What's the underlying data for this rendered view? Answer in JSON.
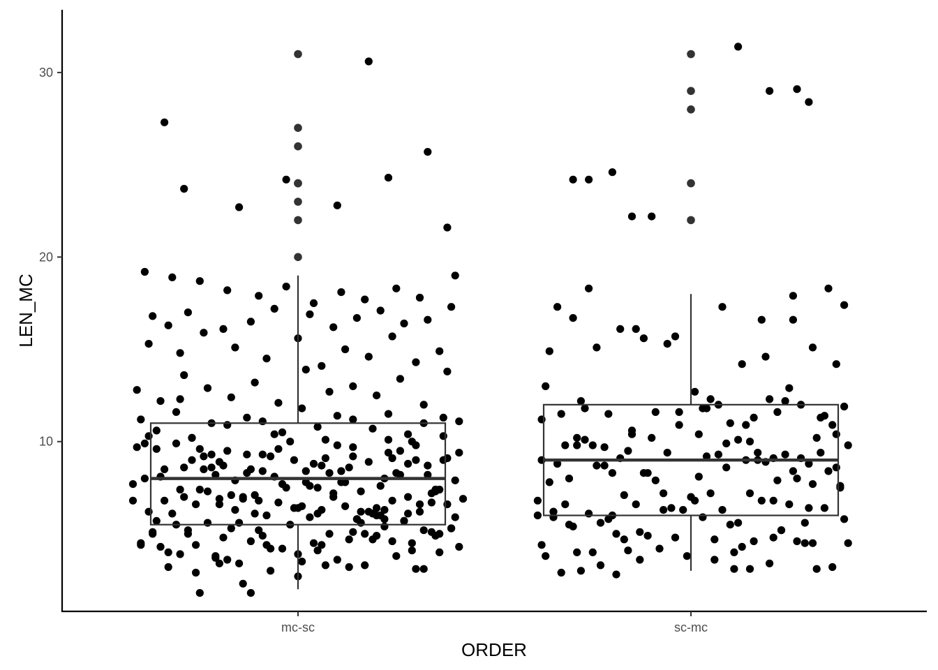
{
  "chart_data": {
    "type": "box",
    "xlabel": "ORDER",
    "ylabel": "LEN_MC",
    "categories": [
      "mc-sc",
      "sc-mc"
    ],
    "ylim": [
      0.8,
      33.4
    ],
    "yticks": [
      10,
      20,
      30
    ],
    "grid": false,
    "legend": "none",
    "boxes": [
      {
        "category": "mc-sc",
        "whisker_low": 2,
        "q1": 5.5,
        "median": 8,
        "q3": 11,
        "whisker_high": 19
      },
      {
        "category": "sc-mc",
        "whisker_low": 3,
        "q1": 6,
        "median": 9,
        "q3": 12,
        "whisker_high": 18
      }
    ],
    "outliers": [
      {
        "category": "mc-sc",
        "values": [
          20,
          22,
          23,
          24,
          24,
          26,
          27,
          31
        ]
      },
      {
        "category": "sc-mc",
        "values": [
          22,
          24,
          28,
          29,
          31
        ]
      }
    ],
    "points": [
      {
        "category": "mc-sc",
        "jitter": [
          -0.42,
          -0.39,
          -0.38,
          -0.37,
          -0.36,
          -0.35,
          -0.34,
          -0.33,
          -0.32,
          -0.31,
          -0.3,
          -0.29,
          -0.28,
          -0.27,
          -0.26,
          -0.25,
          -0.24,
          -0.23,
          -0.22,
          -0.21,
          -0.2,
          -0.19,
          -0.18,
          -0.17,
          -0.16,
          -0.15,
          -0.14,
          -0.13,
          -0.12,
          -0.11,
          -0.1,
          -0.09,
          -0.08,
          -0.07,
          -0.06,
          -0.05,
          -0.04,
          -0.03,
          -0.02,
          -0.01,
          0.0,
          0.01,
          0.02,
          0.03,
          0.04,
          0.05,
          0.06,
          0.07,
          0.08,
          0.09,
          0.1,
          0.11,
          0.12,
          0.13,
          0.14,
          0.15,
          0.16,
          0.17,
          0.18,
          0.19,
          0.2,
          0.21,
          0.22,
          0.23,
          0.24,
          0.25,
          0.26,
          0.27,
          0.28,
          0.29,
          0.3,
          0.31,
          0.32,
          0.33,
          0.34,
          0.35,
          0.36,
          0.37,
          0.38,
          0.39,
          0.4,
          0.41,
          0.42,
          -0.4,
          -0.36,
          -0.31,
          -0.27,
          -0.22,
          -0.18,
          -0.13,
          -0.09,
          -0.04,
          0.01,
          0.05,
          0.1,
          0.14,
          0.19,
          0.23,
          0.28,
          0.32,
          0.37,
          0.41,
          -0.41,
          -0.35,
          -0.29,
          -0.23,
          -0.17,
          -0.11,
          -0.05,
          0.02,
          0.08,
          0.14,
          0.2,
          0.26,
          0.32,
          0.38,
          -0.38,
          -0.3,
          -0.24,
          -0.16,
          -0.08,
          0.0,
          0.06,
          0.12,
          0.18,
          0.24,
          0.3,
          0.36,
          -0.37,
          -0.33,
          -0.28,
          -0.19,
          -0.12,
          -0.06,
          0.03,
          0.09,
          0.15,
          0.21,
          0.27,
          0.33,
          0.39,
          -0.39,
          -0.32,
          -0.25,
          -0.18,
          -0.1,
          -0.03,
          0.04,
          0.11,
          0.17,
          0.25,
          0.31,
          0.4,
          -0.36,
          -0.26,
          -0.2,
          -0.14,
          -0.07,
          0.07,
          0.13,
          0.22,
          0.29,
          0.34,
          -0.4,
          -0.34,
          -0.21,
          -0.15,
          -0.02,
          0.06,
          0.16,
          0.24,
          0.35,
          0.41,
          -0.41,
          -0.3,
          -0.24,
          -0.11,
          -0.05,
          0.03,
          0.1,
          0.2,
          0.28,
          0.37,
          -0.42,
          -0.27,
          -0.17,
          -0.09,
          0.01,
          0.12,
          0.23,
          0.33,
          0.4,
          -0.38,
          -0.29,
          -0.2,
          -0.13,
          -0.04,
          0.08,
          0.18,
          0.26,
          0.36,
          -0.35,
          -0.25,
          -0.16,
          -0.06,
          0.05,
          0.14,
          0.22,
          0.31,
          0.39,
          -0.39,
          -0.28,
          -0.19,
          -0.08,
          0.02,
          0.11,
          0.21,
          0.3,
          0.38,
          -0.37,
          -0.23,
          -0.12,
          -0.01,
          0.09,
          0.19,
          0.27,
          0.35,
          -0.33,
          -0.22,
          -0.1,
          0.04,
          0.15,
          0.25,
          0.34,
          -0.31,
          -0.18,
          -0.07,
          0.07,
          0.17,
          0.29,
          0.36,
          -0.26,
          -0.14,
          0.0,
          0.13,
          0.24,
          0.32,
          -0.21,
          -0.09,
          0.06,
          0.16,
          0.28,
          -0.34,
          -0.15,
          0.1,
          0.23,
          0.38,
          -0.29,
          -0.03,
          0.18,
          0.33,
          -0.4,
          -0.2,
          0.05,
          0.3,
          -0.25,
          0.0,
          0.2,
          -0.12,
          0.14,
          -0.3,
          0.22
        ],
        "values": [
          7.7,
          8.0,
          6.2,
          5.1,
          9.6,
          4.3,
          8.5,
          3.2,
          6.1,
          9.9,
          3.9,
          7.0,
          5.0,
          10.2,
          4.4,
          7.4,
          9.2,
          5.6,
          8.6,
          3.7,
          6.6,
          4.8,
          9.5,
          5.3,
          7.9,
          3.4,
          6.9,
          8.3,
          4.6,
          7.1,
          5.2,
          9.3,
          6.0,
          3.0,
          8.1,
          6.7,
          4.2,
          7.5,
          5.5,
          9.0,
          6.4,
          3.5,
          7.8,
          5.9,
          8.8,
          4.1,
          6.3,
          9.1,
          5.0,
          7.2,
          3.6,
          8.4,
          6.5,
          4.7,
          9.7,
          5.8,
          7.3,
          3.3,
          8.9,
          6.1,
          4.9,
          7.6,
          5.4,
          9.4,
          6.8,
          3.8,
          8.2,
          5.7,
          7.0,
          4.5,
          9.8,
          6.2,
          3.1,
          8.7,
          5.1,
          7.4,
          4.0,
          9.0,
          6.6,
          5.3,
          7.9,
          4.3,
          6.9,
          11.2,
          10.6,
          11.6,
          10.2,
          11.0,
          10.9,
          11.3,
          11.1,
          10.5,
          11.8,
          10.8,
          11.4,
          11.2,
          10.7,
          11.5,
          10.4,
          11.0,
          11.3,
          11.1,
          12.8,
          12.2,
          13.6,
          12.9,
          12.4,
          13.2,
          12.1,
          13.9,
          12.7,
          13.0,
          12.5,
          13.4,
          12.0,
          13.8,
          15.3,
          14.8,
          15.9,
          15.1,
          14.5,
          15.6,
          14.1,
          15.0,
          14.6,
          15.7,
          14.3,
          14.9,
          16.8,
          16.3,
          17.0,
          16.1,
          16.5,
          17.2,
          16.9,
          16.2,
          16.7,
          17.1,
          16.4,
          16.6,
          17.3,
          19.2,
          18.9,
          18.7,
          18.2,
          17.9,
          18.4,
          17.5,
          18.1,
          17.7,
          18.3,
          17.8,
          19.0,
          5.7,
          6.6,
          8.9,
          7.0,
          9.2,
          10.1,
          8.6,
          6.3,
          10.0,
          7.2,
          4.5,
          6.8,
          8.2,
          5.6,
          10.0,
          8.7,
          6.2,
          9.1,
          7.3,
          9.4,
          9.7,
          7.4,
          8.5,
          6.1,
          9.6,
          7.6,
          9.8,
          6.4,
          8.8,
          10.3,
          6.8,
          9.0,
          7.1,
          8.4,
          6.5,
          7.8,
          10.1,
          8.2,
          5.9,
          10.3,
          8.6,
          6.9,
          9.3,
          7.7,
          8.3,
          6.2,
          9.5,
          7.4,
          8.1,
          9.6,
          6.3,
          10.4,
          7.5,
          9.2,
          8.0,
          6.6,
          5.3,
          9.9,
          5.2,
          8.7,
          4.4,
          8.4,
          7.8,
          6.0,
          9.0,
          9.1,
          5.0,
          7.3,
          8.5,
          6.4,
          7.0,
          4.7,
          5.7,
          4.9,
          4.0,
          9.3,
          6.8,
          4.5,
          5.8,
          8.3,
          6.7,
          5.5,
          3.6,
          4.2,
          3.3,
          5.0,
          4.1,
          5.0,
          2.9,
          2.3,
          3.9,
          3.2,
          4.6,
          5.2,
          3.8,
          4.9,
          4.4,
          5.6,
          6.1,
          27.3,
          22.7,
          22.8,
          24.3,
          21.6,
          23.7,
          24.2,
          30.6,
          25.7,
          4.4,
          3.4,
          6.1,
          3.1,
          1.8,
          2.7,
          6.0,
          1.8,
          5.1,
          12.3,
          5.8
        ]
      },
      {
        "category": "sc-mc",
        "jitter": [
          -0.39,
          -0.38,
          -0.37,
          -0.36,
          -0.35,
          -0.34,
          -0.33,
          -0.32,
          -0.31,
          -0.3,
          -0.29,
          -0.28,
          -0.27,
          -0.26,
          -0.25,
          -0.24,
          -0.23,
          -0.22,
          -0.21,
          -0.2,
          -0.19,
          -0.18,
          -0.17,
          -0.16,
          -0.15,
          -0.14,
          -0.13,
          -0.12,
          -0.11,
          -0.1,
          -0.09,
          -0.08,
          -0.07,
          -0.06,
          -0.05,
          -0.04,
          -0.03,
          -0.02,
          -0.01,
          0.0,
          0.01,
          0.02,
          0.03,
          0.04,
          0.05,
          0.06,
          0.07,
          0.08,
          0.09,
          0.1,
          0.11,
          0.12,
          0.13,
          0.14,
          0.15,
          0.16,
          0.17,
          0.18,
          0.19,
          0.2,
          0.21,
          0.22,
          0.23,
          0.24,
          0.25,
          0.26,
          0.27,
          0.28,
          0.29,
          0.3,
          0.31,
          0.32,
          0.33,
          0.34,
          0.35,
          0.36,
          0.37,
          0.38,
          0.39,
          0.4,
          -0.38,
          -0.33,
          -0.27,
          -0.21,
          -0.15,
          -0.09,
          -0.03,
          0.04,
          0.1,
          0.16,
          0.22,
          0.28,
          0.34,
          0.39,
          -0.36,
          -0.3,
          -0.24,
          -0.18,
          -0.12,
          -0.06,
          0.01,
          0.07,
          0.13,
          0.19,
          0.25,
          0.31,
          0.37,
          -0.34,
          -0.26,
          -0.14,
          -0.04,
          0.08,
          0.18,
          0.26,
          0.35,
          -0.39,
          -0.31,
          -0.22,
          -0.11,
          0.03,
          0.14,
          0.21,
          0.33,
          0.4,
          -0.35,
          -0.28,
          -0.19,
          0.06,
          0.15,
          0.24,
          0.3,
          0.38,
          -0.37,
          -0.29,
          -0.2,
          0.05,
          0.2,
          0.32,
          -0.32,
          -0.25,
          -0.16,
          0.09,
          0.17,
          0.27,
          0.36,
          -0.35,
          -0.23,
          -0.13,
          0.02,
          0.12,
          0.23,
          0.29,
          0.37,
          -0.38,
          -0.29,
          -0.17,
          -0.07,
          0.11,
          0.21,
          0.31,
          0.39,
          -0.3,
          -0.1,
          0.15,
          0.26,
          -0.26,
          0.27,
          0.3,
          -0.2,
          -0.15,
          0.12,
          0.2
        ],
        "values": [
          6.0,
          9.0,
          3.8,
          7.8,
          5.9,
          8.8,
          2.9,
          6.6,
          8.0,
          5.4,
          9.8,
          3.0,
          10.1,
          6.1,
          4.0,
          8.7,
          3.3,
          9.7,
          5.8,
          6.0,
          2.8,
          9.1,
          7.1,
          4.1,
          10.4,
          6.6,
          3.6,
          8.3,
          4.9,
          10.2,
          7.9,
          4.2,
          6.3,
          9.4,
          6.4,
          4.8,
          10.9,
          6.3,
          3.8,
          7.0,
          6.8,
          10.4,
          5.9,
          9.2,
          7.2,
          3.6,
          9.3,
          6.3,
          8.6,
          5.5,
          3.1,
          10.1,
          4.3,
          9.0,
          7.2,
          4.6,
          9.4,
          6.8,
          8.9,
          3.4,
          9.1,
          7.9,
          5.2,
          9.3,
          6.6,
          8.4,
          4.6,
          9.1,
          5.6,
          8.8,
          7.7,
          3.1,
          9.4,
          6.4,
          8.4,
          3.2,
          10.4,
          7.5,
          5.8,
          9.8,
          11.2,
          11.5,
          11.8,
          11.5,
          10.6,
          11.6,
          11.6,
          11.8,
          11.0,
          11.3,
          11.6,
          12.0,
          11.4,
          11.9,
          14.9,
          16.7,
          15.1,
          16.1,
          15.6,
          15.3,
          12.7,
          12.0,
          14.2,
          14.6,
          12.9,
          15.1,
          14.2,
          17.3,
          18.3,
          16.1,
          15.7,
          17.3,
          16.6,
          17.9,
          18.3,
          6.8,
          5.5,
          8.7,
          8.3,
          11.8,
          10.9,
          6.8,
          11.3,
          4.5,
          6.2,
          12.2,
          5.0,
          4.7,
          10.0,
          12.2,
          6.4,
          7.6,
          13.0,
          10.2,
          8.3,
          12.3,
          12.3,
          10.2,
          9.8,
          9.8,
          9.5,
          9.9,
          9.0,
          8.0,
          10.9,
          6.2,
          5.6,
          5.1,
          8.1,
          5.6,
          5.2,
          4.5,
          8.6,
          4.4,
          4.0,
          4.7,
          7.2,
          4.0,
          4.8,
          4.5,
          17.4,
          24.2,
          22.2,
          3.1,
          16.6,
          24.2,
          29.1,
          28.4,
          24.6,
          22.2,
          31.4,
          29.0
        ]
      }
    ]
  }
}
